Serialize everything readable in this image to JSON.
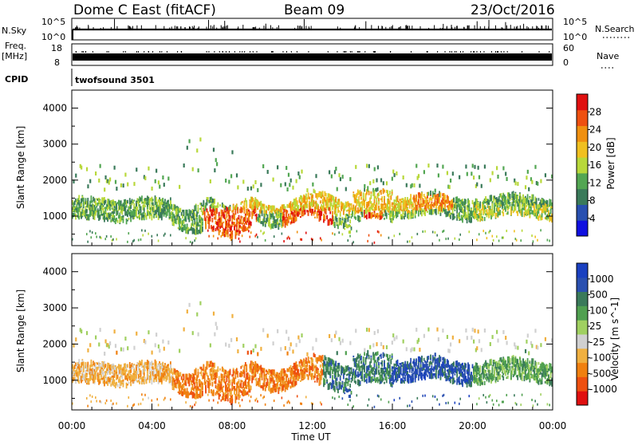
{
  "header": {
    "station": "Dome C East (fitACF)",
    "beam": "Beam 09",
    "date": "23/Oct/2016"
  },
  "top_panels": {
    "nsky_label": "N.Sky",
    "nsky_ticks": [
      "10^5",
      "10^0"
    ],
    "nsearch_label": "N.Search",
    "nsearch_ticks": [
      "10^5",
      "10^0"
    ],
    "freq_label_1": "Freq.",
    "freq_label_2": "[MHz]",
    "freq_ticks": [
      "18",
      "8"
    ],
    "nave_label": "Nave",
    "nave_ticks": [
      "60",
      "0"
    ],
    "cpid_label": "CPID",
    "cpid_value": "twofsound 3501"
  },
  "colors": {
    "power_scale": [
      "#1010e0",
      "#2850b0",
      "#3a7a5a",
      "#52a652",
      "#b8d83a",
      "#f0c020",
      "#f09010",
      "#ee5010",
      "#e01010"
    ],
    "velocity_scale": [
      "#e01010",
      "#ee5010",
      "#f08010",
      "#f0b040",
      "#d0d0d0",
      "#a0d060",
      "#50a050",
      "#3a7a5a",
      "#2a50b0",
      "#1a40c0"
    ]
  },
  "chart_data": [
    {
      "type": "heatmap",
      "panel": "power",
      "xlabel": "Time UT",
      "ylabel": "Slant Range [km]",
      "x_ticks": [
        "00:00",
        "04:00",
        "08:00",
        "12:00",
        "16:00",
        "20:00",
        "00:00"
      ],
      "xlim": [
        0,
        24
      ],
      "ylim": [
        180,
        4500
      ],
      "y_ticks": [
        1000,
        2000,
        3000,
        4000
      ],
      "colorbar_label": "Power [dB]",
      "colorbar_ticks": [
        4,
        8,
        12,
        16,
        20,
        24,
        28
      ],
      "colorbar_range": [
        0,
        32
      ]
    },
    {
      "type": "heatmap",
      "panel": "velocity",
      "xlabel": "Time UT",
      "ylabel": "Slant Range [km]",
      "x_ticks": [
        "00:00",
        "04:00",
        "08:00",
        "12:00",
        "16:00",
        "20:00",
        "00:00"
      ],
      "xlim": [
        0,
        24
      ],
      "ylim": [
        180,
        4500
      ],
      "y_ticks": [
        1000,
        2000,
        3000,
        4000
      ],
      "colorbar_label": "Velocity [m s^-1]",
      "colorbar_ticks": [
        "1000",
        "500",
        "100",
        "25",
        "-25",
        "-100",
        "-500",
        "-1000"
      ]
    }
  ]
}
